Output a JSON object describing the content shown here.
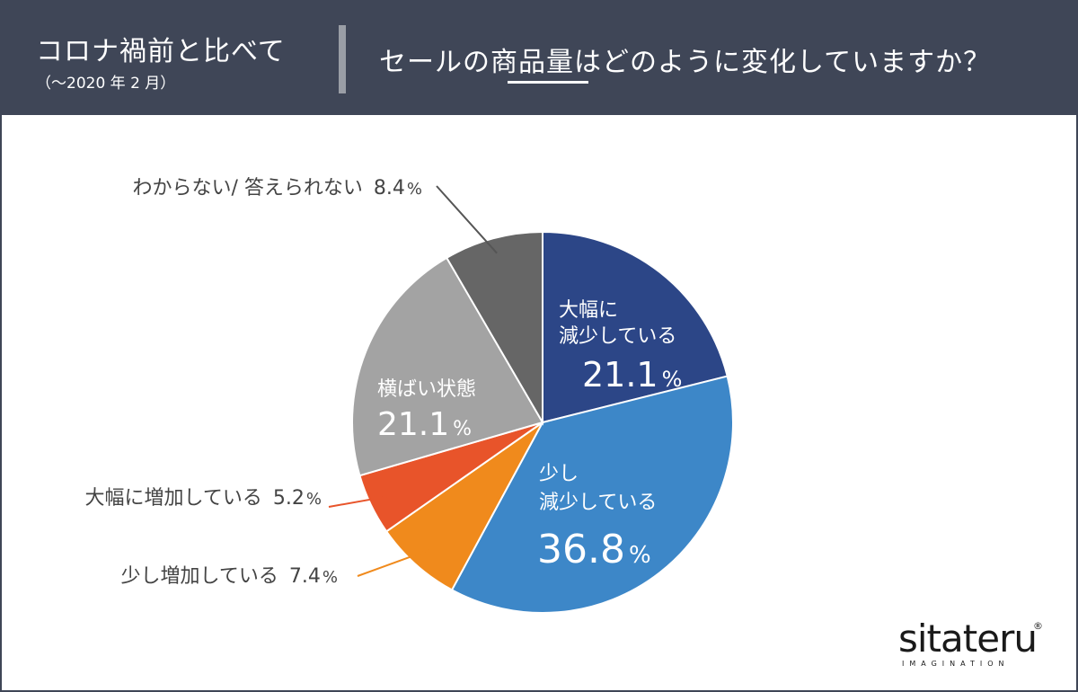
{
  "header": {
    "left_title": "コロナ禍前と比べて",
    "left_subtitle": "（～2020 年 2 月）",
    "question": "セールの商品量はどのように変化していますか？"
  },
  "chart_data": {
    "type": "pie",
    "title": "セールの商品量はどのように変化していますか？",
    "start_angle_deg": 0,
    "direction": "clockwise",
    "unit": "%",
    "slices": [
      {
        "label_lines": [
          "大幅に",
          "減少している"
        ],
        "value": 21.1,
        "value_text": "21.1",
        "color": "#2c4687",
        "label_position": "inside"
      },
      {
        "label_lines": [
          "少し",
          "減少している"
        ],
        "value": 36.8,
        "value_text": "36.8",
        "color": "#3d87c8",
        "label_position": "inside"
      },
      {
        "label_lines": [
          "少し増加している"
        ],
        "value": 7.4,
        "value_text": "7.4",
        "color": "#f08a1c",
        "label_position": "outside-left"
      },
      {
        "label_lines": [
          "大幅に増加している"
        ],
        "value": 5.2,
        "value_text": "5.2",
        "color": "#e8542a",
        "label_position": "outside-left"
      },
      {
        "label_lines": [
          "横ばい状態"
        ],
        "value": 21.1,
        "value_text": "21.1",
        "color": "#a3a3a3",
        "label_position": "inside"
      },
      {
        "label_lines": [
          "わからない/ 答えられない"
        ],
        "value": 8.4,
        "value_text": "8.4",
        "color": "#666666",
        "label_position": "outside-top-left"
      }
    ]
  },
  "logo": {
    "main": "sitateru",
    "registered": "®",
    "sub": "IMAGINATION"
  }
}
